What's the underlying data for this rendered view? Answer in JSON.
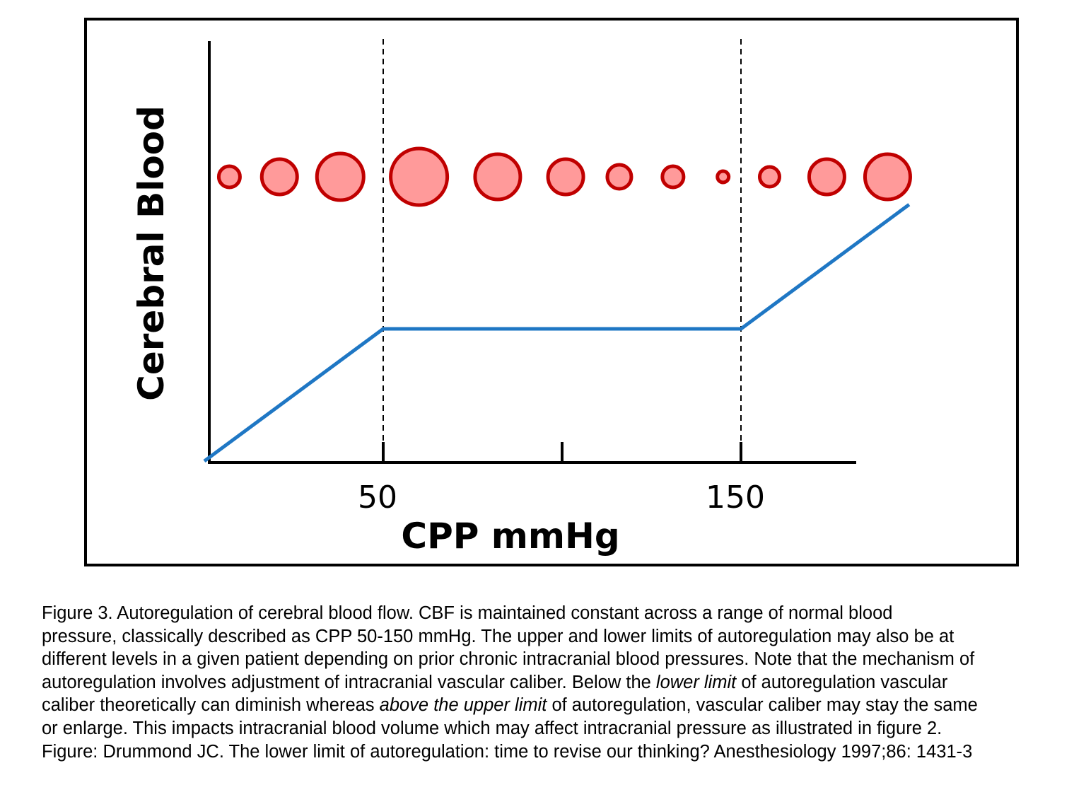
{
  "chart_data": {
    "type": "line",
    "title": "",
    "xlabel": "CPP mmHg",
    "ylabel": "Cerebral Blood",
    "xlim": [
      0,
      182
    ],
    "ylim": [
      0,
      2.3
    ],
    "x_ticks": [
      50,
      100,
      150
    ],
    "x_tick_labels": [
      "50",
      "",
      "150"
    ],
    "grid": false,
    "vertical_reference_lines": [
      50,
      150
    ],
    "series": [
      {
        "x": [
          0,
          50,
          150,
          197
        ],
        "y": [
          0,
          1,
          1,
          1.94
        ],
        "color": "#1f77c4"
      }
    ],
    "vessel_circles": {
      "x": [
        7,
        21,
        38,
        60,
        82,
        101,
        116,
        131,
        145,
        158,
        174,
        191
      ],
      "relative_size": [
        1.7,
        2.7,
        3.5,
        4.2,
        3.4,
        2.7,
        1.9,
        1.7,
        1.0,
        1.6,
        2.7,
        3.4
      ],
      "fill": "#ff9a9a",
      "stroke": "#c00000"
    }
  },
  "caption": {
    "lines": [
      [
        {
          "t": "Figure 3. Autoregulation of cerebral blood flow. CBF  is maintained constant across a range of normal blood"
        }
      ],
      [
        {
          "t": "pressure, classically described as CPP 50-150 mmHg. The upper and lower limits of autoregulation may also be at"
        }
      ],
      [
        {
          "t": "different levels in a given patient depending on prior chronic intracranial blood pressures. Note that the mechanism of"
        }
      ],
      [
        {
          "t": "autoregulation involves adjustment of intracranial vascular caliber. Below the "
        },
        {
          "t": "lower limit",
          "i": true
        },
        {
          "t": " of autoregulation vascular"
        }
      ],
      [
        {
          "t": "caliber theoretically can diminish whereas "
        },
        {
          "t": "above the upper limit",
          "i": true
        },
        {
          "t": " of autoregulation, vascular caliber may stay the same"
        }
      ],
      [
        {
          "t": "or enlarge. This impacts intracranial blood volume which may affect intracranial pressure as illustrated in figure 2."
        }
      ],
      [
        {
          "t": "Figure: Drummond JC. The lower limit of autoregulation: time to revise our thinking? Anesthesiology 1997;86: 1431-3"
        }
      ]
    ]
  }
}
